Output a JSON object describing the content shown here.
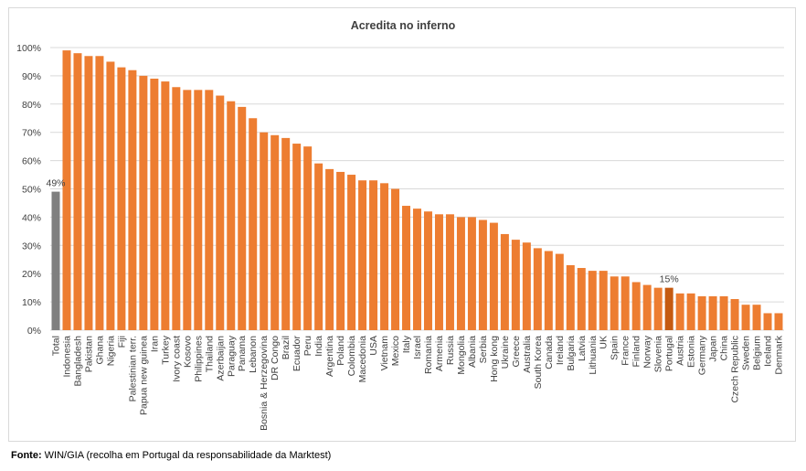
{
  "source": {
    "label": "Fonte:",
    "text": " WIN/GIA (recolha em Portugal da responsabilidade da Marktest)"
  },
  "colors": {
    "bar": "#ed7d31",
    "total_bar": "#7f7f7f",
    "portugal_bar": "#c55a11",
    "grid": "#d9d9d9",
    "axis_text": "#404040"
  },
  "chart_data": {
    "type": "bar",
    "title": "Acredita no inferno",
    "xlabel": "",
    "ylabel": "",
    "ylim": [
      0,
      100
    ],
    "yticks": [
      "0%",
      "10%",
      "20%",
      "30%",
      "40%",
      "50%",
      "60%",
      "70%",
      "80%",
      "90%",
      "100%"
    ],
    "grid": true,
    "legend": "none",
    "categories": [
      "Total",
      "Indonesia",
      "Bangladesh",
      "Pakistan",
      "Ghana",
      "Nigeria",
      "Fiji",
      "Palestinian terr.",
      "Papua new guinea",
      "Iran",
      "Turkey",
      "Ivory coast",
      "Kosovo",
      "Philippines",
      "Thailand",
      "Azerbaijan",
      "Paraguay",
      "Panama",
      "Lebanon",
      "Bosnia & Herzegovina",
      "DR Congo",
      "Brazil",
      "Ecuador",
      "Peru",
      "India",
      "Argentina",
      "Poland",
      "Colombia",
      "Macedonia",
      "USA",
      "Vietnam",
      "Mexico",
      "Italy",
      "Israel",
      "Romania",
      "Armenia",
      "Russia",
      "Mongolia",
      "Albania",
      "Serbia",
      "Hong kong",
      "Ukraine",
      "Greece",
      "Australia",
      "South Korea",
      "Canada",
      "Ireland",
      "Bulgaria",
      "Latvia",
      "Lithuania",
      "UK",
      "Spain",
      "France",
      "Finland",
      "Norway",
      "Slovenia",
      "Portugal",
      "Austria",
      "Estonia",
      "Germany",
      "Japan",
      "China",
      "Czech Republic",
      "Sweden",
      "Belgium",
      "Iceland",
      "Denmark"
    ],
    "values": [
      49,
      99,
      98,
      97,
      97,
      95,
      93,
      92,
      90,
      89,
      88,
      86,
      85,
      85,
      85,
      83,
      81,
      79,
      75,
      70,
      69,
      68,
      66,
      65,
      59,
      57,
      56,
      55,
      53,
      53,
      52,
      50,
      44,
      43,
      42,
      41,
      41,
      40,
      40,
      39,
      38,
      34,
      32,
      31,
      29,
      28,
      27,
      23,
      22,
      21,
      21,
      19,
      19,
      17,
      16,
      15,
      15,
      13,
      13,
      12,
      12,
      12,
      11,
      9,
      9,
      6,
      6
    ],
    "data_labels": [
      {
        "category": "Total",
        "text": "49%"
      },
      {
        "category": "Portugal",
        "text": "15%"
      }
    ],
    "highlight": {
      "Total": "total_bar",
      "Portugal": "portugal_bar"
    }
  }
}
